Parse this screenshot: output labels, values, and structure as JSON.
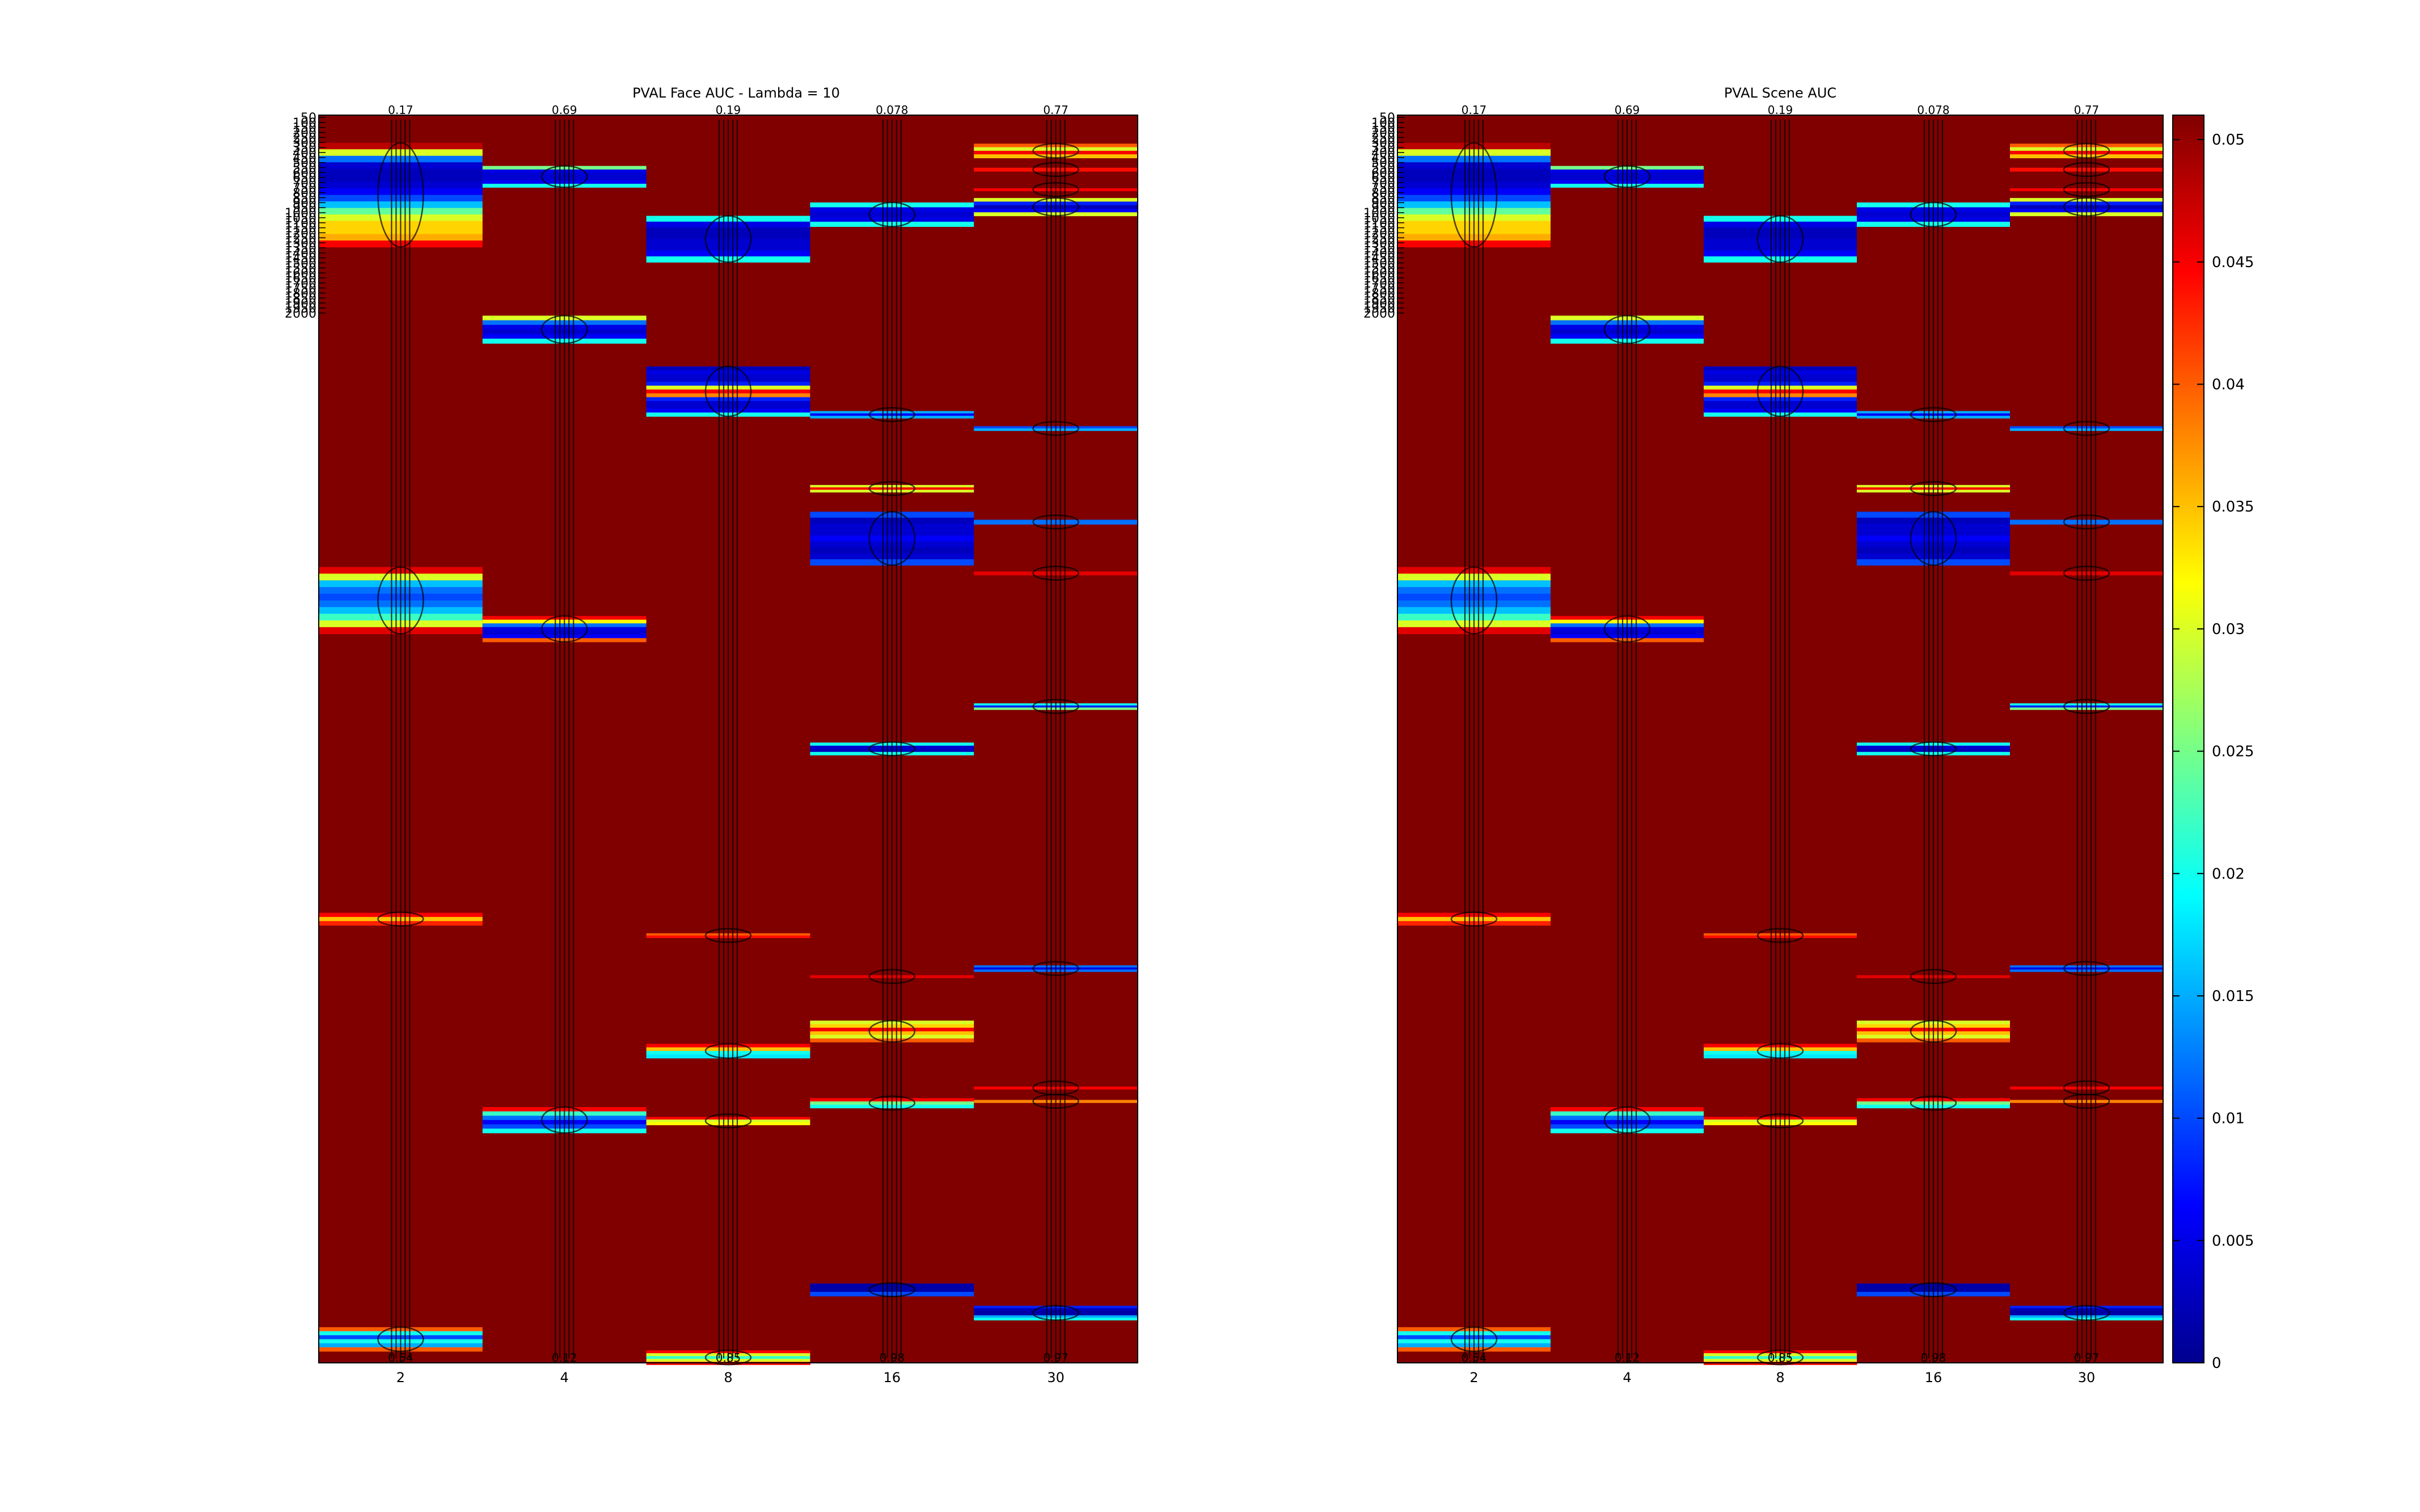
{
  "chart_data": [
    {
      "type": "heatmap",
      "title": "PVAL Face AUC - Lambda = 10",
      "x": [
        "2",
        "4",
        "8",
        "16",
        "30"
      ],
      "y_tick_labels": [
        "50",
        "100",
        "150",
        "200",
        "250",
        "300",
        "350",
        "400",
        "450",
        "500",
        "550",
        "600",
        "650",
        "700",
        "750",
        "800",
        "850",
        "900",
        "950",
        "1000",
        "1050",
        "1100",
        "1150",
        "1200",
        "1250",
        "1300",
        "1350",
        "1400",
        "1450",
        "1500",
        "1550",
        "1600",
        "1650",
        "1700",
        "1750",
        "1800",
        "1850",
        "1900",
        "1950",
        "2000"
      ],
      "top_labels": [
        "0.17",
        "0.69",
        "0.19",
        "0.078",
        "0.77"
      ],
      "bottom_labels": [
        "0.54",
        "0.12",
        "0.85",
        "0.98",
        "0.97"
      ],
      "ylim": [
        50,
        2000
      ],
      "color_limits": [
        0,
        0.051
      ],
      "colormap": "jet",
      "background_value": 0.051,
      "columns": [
        {
          "x": "2",
          "bands": [
            {
              "y0": 62,
              "y1": 296,
              "profile": [
                0.048,
                0.03,
                0.012,
                0.004,
                0.003,
                0.003,
                0.004,
                0.006,
                0.01,
                0.016,
                0.024,
                0.03,
                0.034,
                0.034,
                0.036,
                0.045
              ]
            },
            {
              "y0": 1014,
              "y1": 1164,
              "profile": [
                0.046,
                0.03,
                0.016,
                0.012,
                0.01,
                0.012,
                0.016,
                0.022,
                0.03,
                0.046
              ]
            },
            {
              "y0": 1790,
              "y1": 1818,
              "profile": [
                0.045,
                0.035,
                0.043
              ]
            },
            {
              "y0": 2720,
              "y1": 2774,
              "profile": [
                0.04,
                0.02,
                0.01,
                0.02,
                0.015,
                0.04
              ]
            }
          ]
        },
        {
          "x": "4",
          "bands": [
            {
              "y0": 114,
              "y1": 162,
              "profile": [
                0.025,
                0.005,
                0.004,
                0.004,
                0.006,
                0.02
              ]
            },
            {
              "y0": 450,
              "y1": 512,
              "profile": [
                0.03,
                0.012,
                0.005,
                0.004,
                0.006,
                0.02
              ]
            },
            {
              "y0": 1124,
              "y1": 1182,
              "profile": [
                0.045,
                0.032,
                0.012,
                0.005,
                0.004,
                0.006,
                0.04
              ]
            },
            {
              "y0": 2226,
              "y1": 2284,
              "profile": [
                0.045,
                0.022,
                0.012,
                0.006,
                0.01,
                0.02
              ]
            }
          ]
        },
        {
          "x": "8",
          "bands": [
            {
              "y0": 226,
              "y1": 330,
              "profile": [
                0.02,
                0.005,
                0.003,
                0.003,
                0.004,
                0.004,
                0.006,
                0.02
              ]
            },
            {
              "y0": 564,
              "y1": 676,
              "profile": [
                0.003,
                0.005,
                0.004,
                0.004,
                0.008,
                0.03,
                0.045,
                0.038,
                0.008,
                0.004,
                0.004,
                0.006,
                0.02
              ]
            },
            {
              "y0": 1836,
              "y1": 1846,
              "profile": [
                0.04,
                0.044
              ]
            },
            {
              "y0": 2084,
              "y1": 2116,
              "profile": [
                0.045,
                0.035,
                0.02,
                0.018
              ]
            },
            {
              "y0": 2248,
              "y1": 2266,
              "profile": [
                0.045,
                0.03,
                0.032
              ]
            },
            {
              "y0": 2772,
              "y1": 2804,
              "profile": [
                0.045,
                0.03,
                0.022,
                0.03,
                0.045
              ]
            }
          ]
        },
        {
          "x": "16",
          "bands": [
            {
              "y0": 196,
              "y1": 250,
              "profile": [
                0.02,
                0.005,
                0.004,
                0.005,
                0.02
              ]
            },
            {
              "y0": 664,
              "y1": 680,
              "profile": [
                0.015,
                0.006,
                0.015
              ]
            },
            {
              "y0": 830,
              "y1": 846,
              "profile": [
                0.03,
                0.045,
                0.03
              ]
            },
            {
              "y0": 890,
              "y1": 1010,
              "profile": [
                0.01,
                0.003,
                0.004,
                0.004,
                0.006,
                0.004,
                0.003,
                0.004,
                0.01
              ]
            },
            {
              "y0": 1408,
              "y1": 1436,
              "profile": [
                0.02,
                0.004,
                0.003,
                0.02
              ]
            },
            {
              "y0": 1930,
              "y1": 1936,
              "profile": [
                0.046
              ]
            },
            {
              "y0": 2032,
              "y1": 2080,
              "profile": [
                0.03,
                0.034,
                0.045,
                0.035,
                0.03,
                0.04
              ]
            },
            {
              "y0": 2206,
              "y1": 2228,
              "profile": [
                0.045,
                0.025,
                0.02
              ]
            },
            {
              "y0": 2622,
              "y1": 2650,
              "profile": [
                0.002,
                0.002,
                0.01
              ]
            }
          ]
        },
        {
          "x": "30",
          "bands": [
            {
              "y0": 64,
              "y1": 96,
              "profile": [
                0.04,
                0.03,
                0.045,
                0.035
              ]
            },
            {
              "y0": 118,
              "y1": 126,
              "profile": [
                0.044
              ]
            },
            {
              "y0": 164,
              "y1": 170,
              "profile": [
                0.045
              ]
            },
            {
              "y0": 186,
              "y1": 226,
              "profile": [
                0.03,
                0.008,
                0.003,
                0.006,
                0.03
              ]
            },
            {
              "y0": 698,
              "y1": 708,
              "profile": [
                0.01,
                0.015
              ]
            },
            {
              "y0": 908,
              "y1": 918,
              "profile": [
                0.012
              ]
            },
            {
              "y0": 1024,
              "y1": 1032,
              "profile": [
                0.046
              ]
            },
            {
              "y0": 1320,
              "y1": 1334,
              "profile": [
                0.02,
                0.008,
                0.025
              ]
            },
            {
              "y0": 1908,
              "y1": 1922,
              "profile": [
                0.012,
                0.005,
                0.012
              ]
            },
            {
              "y0": 2180,
              "y1": 2186,
              "profile": [
                0.045
              ]
            },
            {
              "y0": 2210,
              "y1": 2216,
              "profile": [
                0.038
              ]
            },
            {
              "y0": 2672,
              "y1": 2704,
              "profile": [
                0.008,
                0.003,
                0.002,
                0.002,
                0.015,
                0.02
              ]
            }
          ]
        }
      ]
    },
    {
      "type": "heatmap",
      "title": "PVAL Scene AUC",
      "same_data_as": 0,
      "x": [
        "2",
        "4",
        "8",
        "16",
        "30"
      ],
      "top_labels": [
        "0.17",
        "0.69",
        "0.19",
        "0.078",
        "0.77"
      ],
      "bottom_labels": [
        "0.54",
        "0.12",
        "0.85",
        "0.98",
        "0.97"
      ],
      "ylim": [
        50,
        2000
      ],
      "color_limits": [
        0,
        0.051
      ],
      "colormap": "jet",
      "colorbar_ticks": [
        "0",
        "0.005",
        "0.01",
        "0.015",
        "0.02",
        "0.025",
        "0.03",
        "0.035",
        "0.04",
        "0.045",
        "0.05"
      ]
    }
  ]
}
